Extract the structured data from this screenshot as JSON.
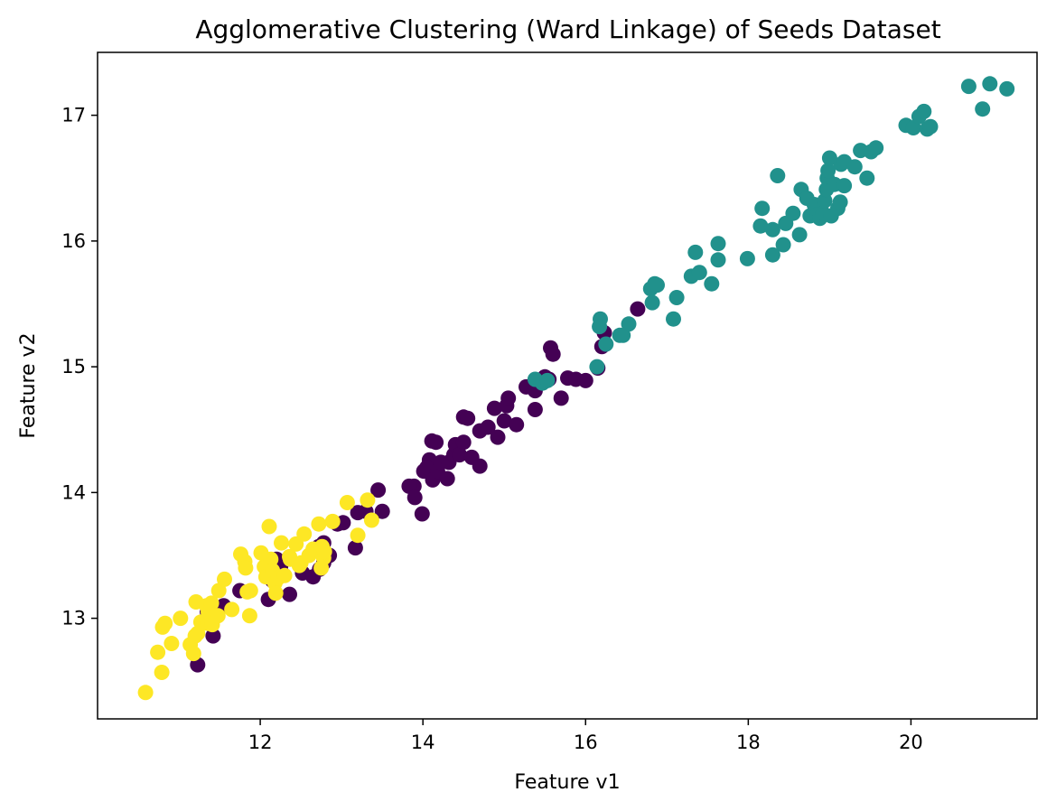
{
  "chart_data": {
    "type": "scatter",
    "title": "Agglomerative Clustering (Ward Linkage) of Seeds Dataset",
    "xlabel": "Feature v1",
    "ylabel": "Feature v2",
    "xlim": [
      10.0,
      21.55
    ],
    "ylim": [
      12.2,
      17.5
    ],
    "xticks": [
      12,
      14,
      16,
      18,
      20
    ],
    "yticks": [
      13,
      14,
      15,
      16,
      17
    ],
    "grid": false,
    "legend": "none",
    "colormap": "viridis",
    "series": [
      {
        "color": "#440154",
        "points": [
          [
            11.23,
            12.63
          ],
          [
            11.42,
            12.86
          ],
          [
            11.35,
            13.05
          ],
          [
            11.55,
            13.1
          ],
          [
            11.75,
            13.22
          ],
          [
            12.1,
            13.15
          ],
          [
            12.15,
            13.3
          ],
          [
            12.2,
            13.47
          ],
          [
            12.25,
            13.41
          ],
          [
            12.36,
            13.19
          ],
          [
            12.52,
            13.36
          ],
          [
            12.65,
            13.33
          ],
          [
            12.73,
            13.39
          ],
          [
            12.78,
            13.44
          ],
          [
            12.85,
            13.5
          ],
          [
            12.72,
            13.57
          ],
          [
            12.78,
            13.6
          ],
          [
            12.95,
            13.75
          ],
          [
            13.02,
            13.76
          ],
          [
            13.17,
            13.56
          ],
          [
            13.2,
            13.84
          ],
          [
            13.3,
            13.85
          ],
          [
            13.45,
            14.02
          ],
          [
            13.5,
            13.85
          ],
          [
            13.89,
            14.05
          ],
          [
            13.83,
            14.05
          ],
          [
            13.9,
            13.96
          ],
          [
            13.99,
            13.83
          ],
          [
            14.01,
            14.17
          ],
          [
            14.08,
            14.26
          ],
          [
            14.05,
            14.2
          ],
          [
            14.12,
            14.1
          ],
          [
            14.18,
            14.17
          ],
          [
            14.22,
            14.24
          ],
          [
            14.3,
            14.11
          ],
          [
            14.32,
            14.24
          ],
          [
            14.38,
            14.3
          ],
          [
            14.4,
            14.38
          ],
          [
            14.45,
            14.3
          ],
          [
            14.5,
            14.4
          ],
          [
            14.6,
            14.28
          ],
          [
            14.7,
            14.21
          ],
          [
            14.11,
            14.41
          ],
          [
            14.16,
            14.4
          ],
          [
            14.5,
            14.6
          ],
          [
            14.55,
            14.59
          ],
          [
            14.7,
            14.49
          ],
          [
            14.8,
            14.52
          ],
          [
            14.88,
            14.67
          ],
          [
            14.92,
            14.44
          ],
          [
            15.0,
            14.57
          ],
          [
            15.03,
            14.69
          ],
          [
            15.05,
            14.75
          ],
          [
            15.15,
            14.54
          ],
          [
            15.27,
            14.84
          ],
          [
            15.38,
            14.81
          ],
          [
            15.38,
            14.66
          ],
          [
            15.5,
            14.92
          ],
          [
            15.55,
            14.9
          ],
          [
            15.57,
            15.15
          ],
          [
            15.6,
            15.1
          ],
          [
            15.7,
            14.75
          ],
          [
            15.78,
            14.91
          ],
          [
            15.88,
            14.9
          ],
          [
            16.0,
            14.89
          ],
          [
            16.15,
            14.99
          ],
          [
            16.2,
            15.16
          ],
          [
            16.23,
            15.27
          ],
          [
            16.64,
            15.46
          ]
        ]
      },
      {
        "color": "#21918c",
        "points": [
          [
            15.38,
            14.9
          ],
          [
            15.47,
            14.87
          ],
          [
            15.53,
            14.89
          ],
          [
            16.14,
            15.0
          ],
          [
            16.18,
            15.38
          ],
          [
            16.17,
            15.32
          ],
          [
            16.25,
            15.18
          ],
          [
            16.42,
            15.25
          ],
          [
            16.46,
            15.25
          ],
          [
            16.53,
            15.34
          ],
          [
            16.8,
            15.62
          ],
          [
            16.85,
            15.66
          ],
          [
            16.88,
            15.65
          ],
          [
            16.82,
            15.51
          ],
          [
            17.08,
            15.38
          ],
          [
            17.12,
            15.55
          ],
          [
            17.3,
            15.72
          ],
          [
            17.35,
            15.91
          ],
          [
            17.4,
            15.75
          ],
          [
            17.55,
            15.66
          ],
          [
            17.63,
            15.85
          ],
          [
            17.63,
            15.98
          ],
          [
            17.99,
            15.86
          ],
          [
            18.15,
            16.12
          ],
          [
            18.17,
            16.26
          ],
          [
            18.3,
            15.89
          ],
          [
            18.3,
            16.09
          ],
          [
            18.36,
            16.52
          ],
          [
            18.43,
            15.97
          ],
          [
            18.46,
            16.14
          ],
          [
            18.55,
            16.22
          ],
          [
            18.63,
            16.05
          ],
          [
            18.65,
            16.41
          ],
          [
            18.72,
            16.34
          ],
          [
            18.76,
            16.2
          ],
          [
            18.81,
            16.29
          ],
          [
            18.85,
            16.21
          ],
          [
            18.88,
            16.18
          ],
          [
            18.92,
            16.22
          ],
          [
            18.94,
            16.32
          ],
          [
            18.96,
            16.41
          ],
          [
            18.97,
            16.5
          ],
          [
            18.98,
            16.56
          ],
          [
            19.0,
            16.66
          ],
          [
            19.02,
            16.2
          ],
          [
            19.06,
            16.45
          ],
          [
            19.1,
            16.26
          ],
          [
            19.13,
            16.31
          ],
          [
            19.14,
            16.61
          ],
          [
            19.18,
            16.44
          ],
          [
            19.18,
            16.63
          ],
          [
            19.31,
            16.59
          ],
          [
            19.38,
            16.72
          ],
          [
            19.46,
            16.5
          ],
          [
            19.51,
            16.71
          ],
          [
            19.57,
            16.74
          ],
          [
            19.94,
            16.92
          ],
          [
            20.03,
            16.9
          ],
          [
            20.1,
            16.99
          ],
          [
            20.16,
            17.03
          ],
          [
            20.2,
            16.89
          ],
          [
            20.24,
            16.91
          ],
          [
            20.71,
            17.23
          ],
          [
            20.88,
            17.05
          ],
          [
            20.97,
            17.25
          ],
          [
            21.18,
            17.21
          ]
        ]
      },
      {
        "color": "#fde725",
        "points": [
          [
            10.59,
            12.41
          ],
          [
            10.74,
            12.73
          ],
          [
            10.79,
            12.57
          ],
          [
            10.8,
            12.93
          ],
          [
            10.83,
            12.96
          ],
          [
            10.91,
            12.8
          ],
          [
            11.02,
            13.0
          ],
          [
            11.14,
            12.79
          ],
          [
            11.18,
            12.72
          ],
          [
            11.2,
            12.86
          ],
          [
            11.23,
            12.88
          ],
          [
            11.21,
            13.13
          ],
          [
            11.27,
            12.97
          ],
          [
            11.34,
            13.1
          ],
          [
            11.35,
            12.96
          ],
          [
            11.36,
            13.05
          ],
          [
            11.4,
            13.12
          ],
          [
            11.41,
            12.95
          ],
          [
            11.48,
            13.02
          ],
          [
            11.49,
            13.22
          ],
          [
            11.56,
            13.31
          ],
          [
            11.65,
            13.07
          ],
          [
            11.76,
            13.51
          ],
          [
            11.81,
            13.45
          ],
          [
            11.82,
            13.4
          ],
          [
            11.84,
            13.21
          ],
          [
            11.87,
            13.02
          ],
          [
            11.88,
            13.22
          ],
          [
            12.01,
            13.52
          ],
          [
            12.05,
            13.41
          ],
          [
            12.07,
            13.33
          ],
          [
            12.11,
            13.73
          ],
          [
            12.13,
            13.47
          ],
          [
            12.15,
            13.38
          ],
          [
            12.18,
            13.28
          ],
          [
            12.19,
            13.2
          ],
          [
            12.22,
            13.32
          ],
          [
            12.26,
            13.6
          ],
          [
            12.3,
            13.34
          ],
          [
            12.36,
            13.49
          ],
          [
            12.37,
            13.47
          ],
          [
            12.44,
            13.59
          ],
          [
            12.48,
            13.42
          ],
          [
            12.5,
            13.44
          ],
          [
            12.54,
            13.67
          ],
          [
            12.6,
            13.5
          ],
          [
            12.65,
            13.55
          ],
          [
            12.72,
            13.75
          ],
          [
            12.75,
            13.4
          ],
          [
            12.76,
            13.57
          ],
          [
            12.78,
            13.48
          ],
          [
            12.79,
            13.53
          ],
          [
            12.89,
            13.77
          ],
          [
            13.07,
            13.92
          ],
          [
            13.2,
            13.66
          ],
          [
            13.32,
            13.94
          ],
          [
            13.37,
            13.78
          ]
        ]
      }
    ]
  }
}
